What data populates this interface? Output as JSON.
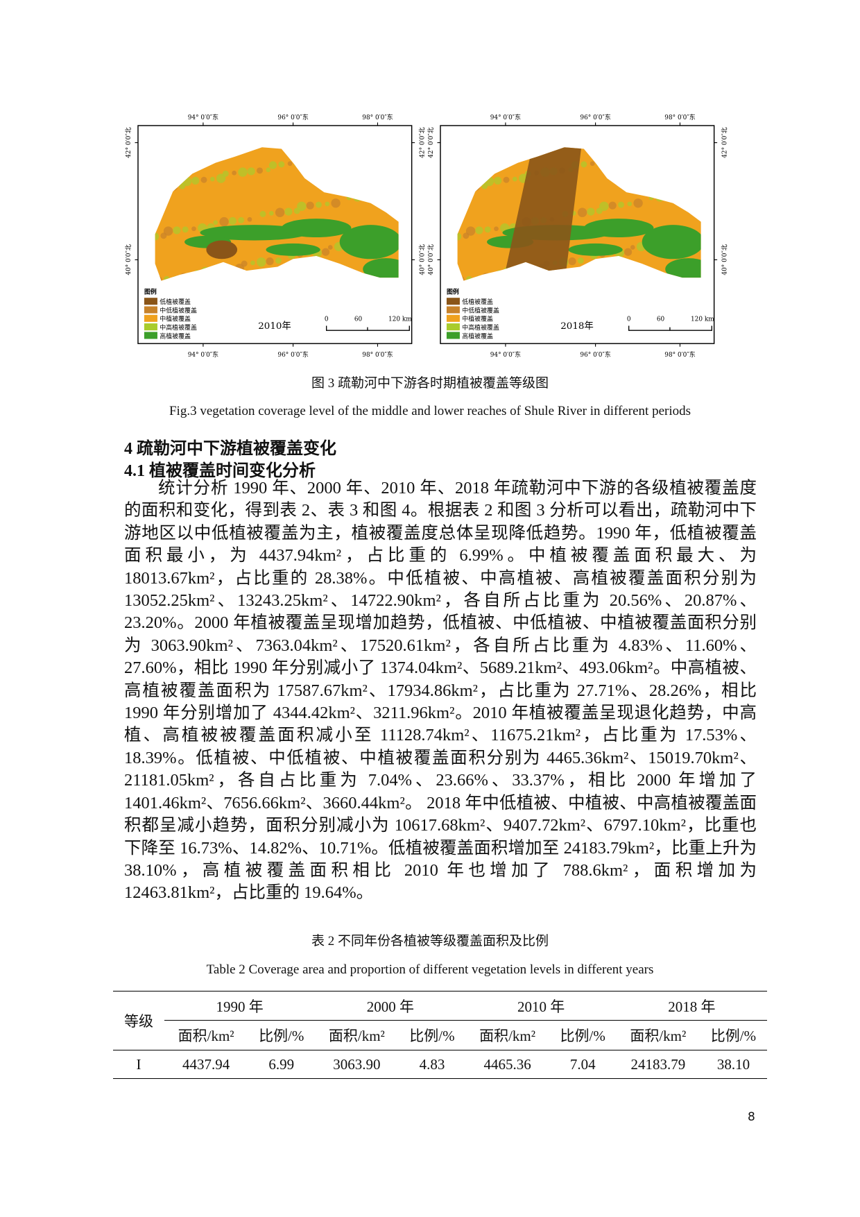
{
  "figure": {
    "lon_labels": [
      "94° 0′0″东",
      "96° 0′0″东",
      "98° 0′0″东"
    ],
    "lat_labels": [
      "42° 0′0″北",
      "40° 0′0″北"
    ],
    "legend_title": "图例",
    "legend_items": [
      "低植被覆盖",
      "中低植被覆盖",
      "中植被覆盖",
      "中高植被覆盖",
      "高植被覆盖"
    ],
    "scale_labels": [
      "0",
      "60",
      "120 km"
    ],
    "maps": [
      {
        "year": "2010年"
      },
      {
        "year": "2018年"
      }
    ],
    "caption_cn": "图 3 疏勒河中下游各时期植被覆盖等级图",
    "caption_en": "Fig.3 vegetation coverage level of the middle and lower reaches of Shule River in different periods"
  },
  "section": {
    "heading": "4 疏勒河中下游植被覆盖变化",
    "subheading": "4.1 植被覆盖时间变化分析",
    "paragraph": "统计分析 1990 年、2000 年、2010 年、2018 年疏勒河中下游的各级植被覆盖度的面积和变化，得到表 2、表 3 和图 4。根据表 2 和图 3 分析可以看出，疏勒河中下游地区以中低植被覆盖为主，植被覆盖度总体呈现降低趋势。1990 年，低植被覆盖面积最小，为 4437.94km²，占比重的 6.99%。中植被覆盖面积最大、为 18013.67km²，占比重的 28.38%。中低植被、中高植被、高植被覆盖面积分别为 13052.25km²、13243.25km²、14722.90km²，各自所占比重为 20.56%、20.87%、23.20%。2000 年植被覆盖呈现增加趋势，低植被、中低植被、中植被覆盖面积分别为 3063.90km²、7363.04km²、17520.61km²，各自所占比重为 4.83%、11.60%、27.60%，相比 1990 年分别减小了 1374.04km²、5689.21km²、493.06km²。中高植被、高植被覆盖面积为 17587.67km²、17934.86km²，占比重为 27.71%、28.26%，相比 1990 年分别增加了 4344.42km²、3211.96km²。2010 年植被覆盖呈现退化趋势，中高植、高植被被覆盖面积减小至 11128.74km²、11675.21km²，占比重为 17.53%、18.39%。低植被、中低植被、中植被覆盖面积分别为 4465.36km²、15019.70km²、21181.05km²，各自占比重为 7.04%、23.66%、33.37%，相比 2000 年增加了 1401.46km²、7656.66km²、3660.44km²。 2018 年中低植被、中植被、中高植被覆盖面积都呈减小趋势，面积分别减小为 10617.68km²、9407.72km²、6797.10km²，比重也下降至 16.73%、14.82%、10.71%。低植被覆盖面积增加至 24183.79km²，比重上升为 38.10%，高植被覆盖面积相比 2010 年也增加了 788.6km²，面积增加为 12463.81km²，占比重的 19.64%。"
  },
  "table": {
    "caption_cn": "表 2  不同年份各植被等级覆盖面积及比例",
    "caption_en": "Table 2 Coverage area and proportion of different vegetation levels in different years",
    "corner": "等级",
    "years": [
      "1990 年",
      "2000 年",
      "2010 年",
      "2018 年"
    ],
    "subheaders": [
      "面积/km²",
      "比例/%"
    ],
    "rows": [
      [
        "I",
        "4437.94",
        "6.99",
        "3063.90",
        "4.83",
        "4465.36",
        "7.04",
        "24183.79",
        "38.10"
      ]
    ]
  },
  "page_number": "8"
}
